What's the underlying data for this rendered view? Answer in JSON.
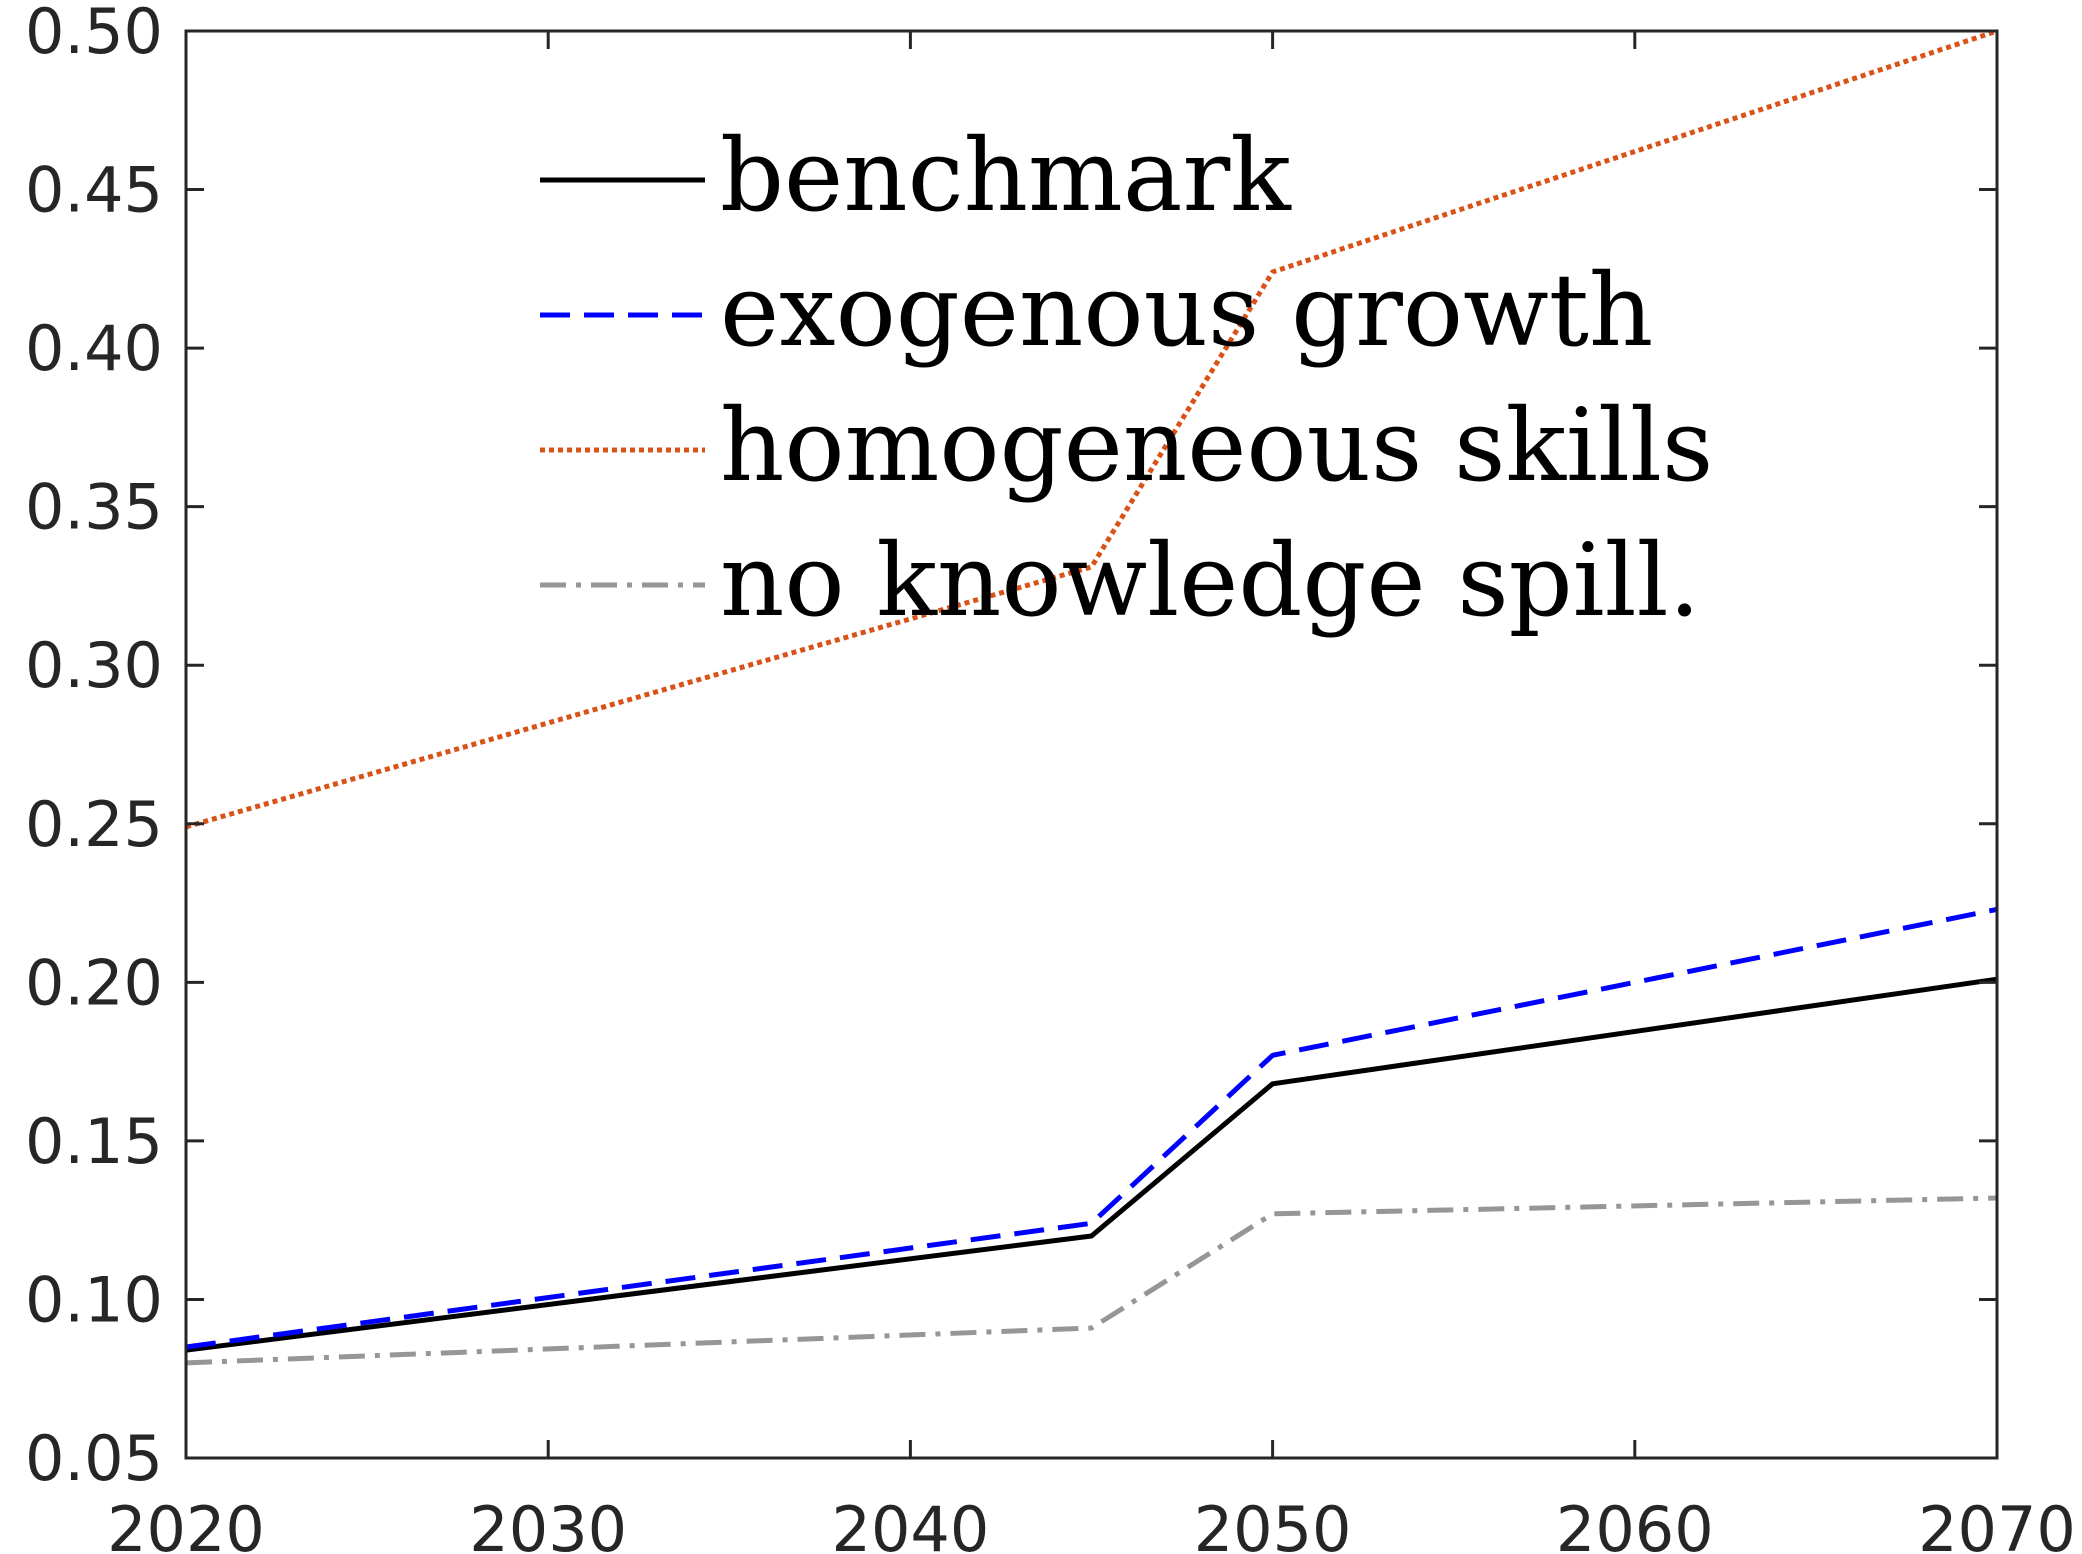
{
  "chart_data": {
    "type": "line",
    "title": "",
    "xlabel": "",
    "ylabel": "",
    "xlim": [
      2020,
      2070
    ],
    "ylim": [
      0.05,
      0.5
    ],
    "grid": false,
    "legend_position": "top-center",
    "x_ticks": [
      "2020",
      "2030",
      "2040",
      "2050",
      "2060",
      "2070"
    ],
    "y_ticks": [
      "0.05",
      "0.10",
      "0.15",
      "0.20",
      "0.25",
      "0.30",
      "0.35",
      "0.40",
      "0.45",
      "0.50"
    ],
    "x_tick_values": [
      2020,
      2030,
      2040,
      2050,
      2060,
      2070
    ],
    "y_tick_values": [
      0.05,
      0.1,
      0.15,
      0.2,
      0.25,
      0.3,
      0.35,
      0.4,
      0.45,
      0.5
    ],
    "x": [
      2020,
      2045,
      2050,
      2070
    ],
    "series": [
      {
        "name": "benchmark",
        "values": [
          0.084,
          0.12,
          0.168,
          0.201
        ],
        "color": "#000000",
        "style": "solid"
      },
      {
        "name": "exogenous growth",
        "values": [
          0.085,
          0.124,
          0.177,
          0.223
        ],
        "color": "#0000ff",
        "style": "dashed"
      },
      {
        "name": "homogeneous skills",
        "values": [
          0.249,
          0.331,
          0.424,
          0.5
        ],
        "color": "#d95319",
        "style": "dotted"
      },
      {
        "name": "no knowledge spill.",
        "values": [
          0.08,
          0.091,
          0.127,
          0.132
        ],
        "color": "#969696",
        "style": "dashdot"
      }
    ]
  }
}
